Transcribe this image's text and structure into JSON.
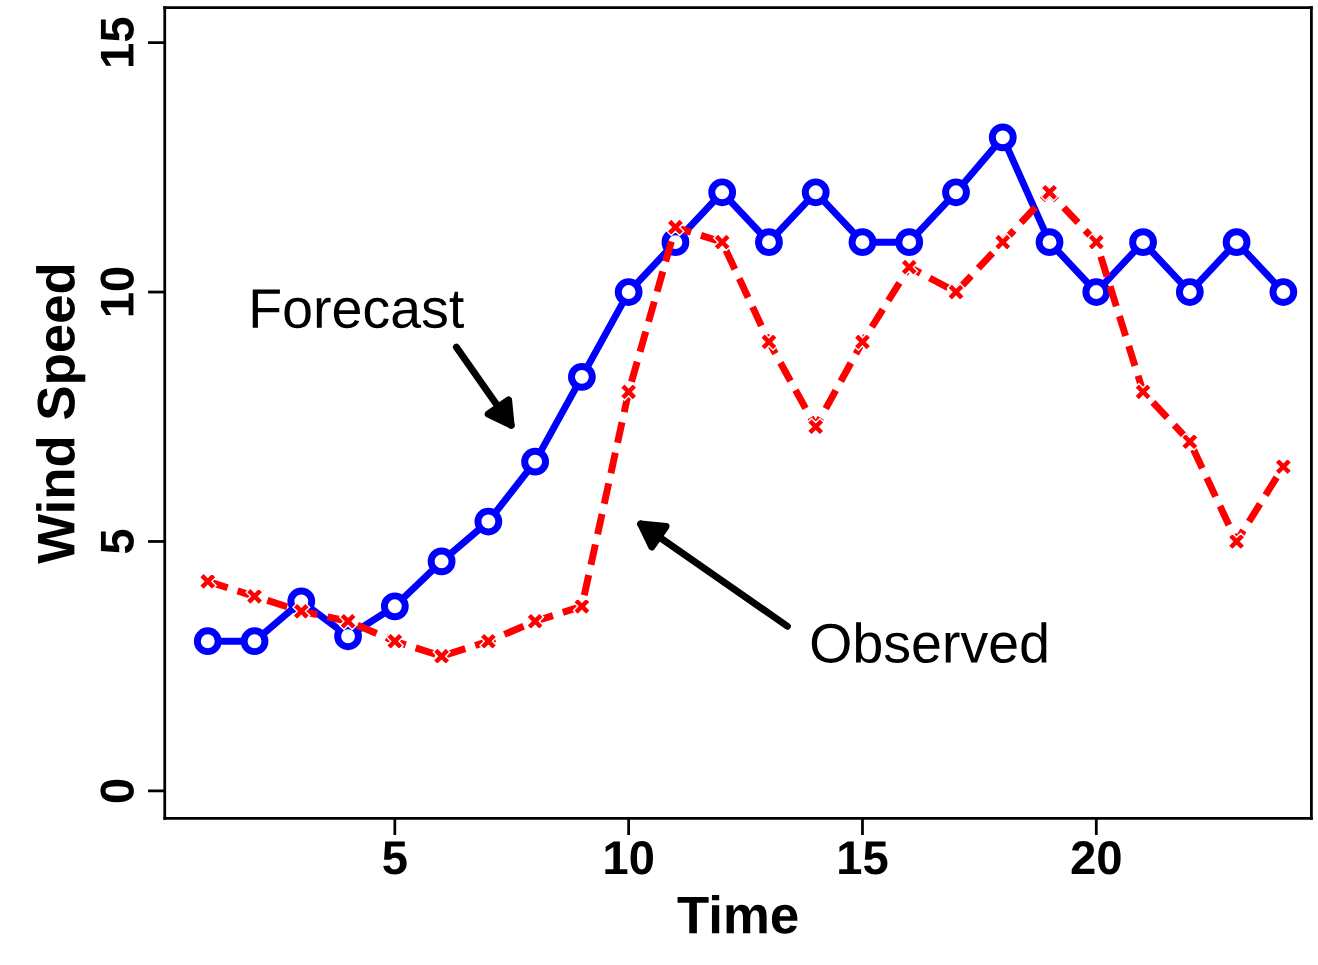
{
  "chart_data": {
    "type": "line",
    "xlabel": "Time",
    "ylabel": "Wind Speed",
    "x": [
      1,
      2,
      3,
      4,
      5,
      6,
      7,
      8,
      9,
      10,
      11,
      12,
      13,
      14,
      15,
      16,
      17,
      18,
      19,
      20,
      21,
      22,
      23,
      24
    ],
    "series": [
      {
        "color": "#0000ff",
        "marker": "circle",
        "line_style": "solid",
        "values": [
          3.0,
          3.0,
          3.8,
          3.1,
          3.7,
          4.6,
          5.4,
          6.6,
          8.3,
          10.0,
          11.0,
          12.0,
          11.0,
          12.0,
          11.0,
          11.0,
          12.0,
          13.1,
          11.0,
          10.0,
          11.0,
          10.0,
          11.0,
          10.0
        ]
      },
      {
        "color": "#ff0000",
        "marker": "cross",
        "line_style": "dashed",
        "values": [
          4.2,
          3.9,
          3.6,
          3.4,
          3.0,
          2.7,
          3.0,
          3.4,
          3.7,
          8.0,
          11.3,
          11.0,
          9.0,
          7.3,
          9.0,
          10.5,
          10.0,
          11.0,
          12.0,
          11.0,
          8.0,
          7.0,
          5.0,
          6.5
        ]
      }
    ],
    "xlim": [
      0.08,
      24.6
    ],
    "ylim": [
      -0.55,
      15.7
    ],
    "xticks": [
      5,
      10,
      15,
      20
    ],
    "yticks": [
      0,
      5,
      10,
      15
    ],
    "grid": false,
    "annotations": [
      "Forecast",
      "Observed"
    ]
  }
}
